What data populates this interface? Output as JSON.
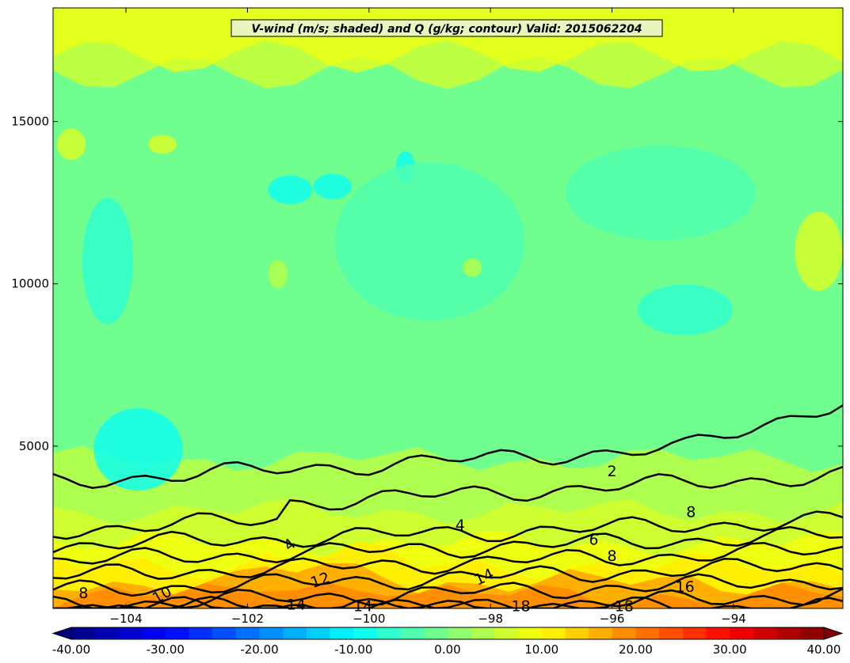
{
  "chart_data": {
    "type": "heatmap",
    "title": "V-wind (m/s; shaded) and Q (g/kg; contour) Valid: 2015062204",
    "xlabel": "",
    "ylabel": "",
    "xlim": [
      -105.2,
      -92.2
    ],
    "ylim": [
      0,
      18500
    ],
    "x_ticks": [
      -104,
      -102,
      -100,
      -98,
      -96,
      -94
    ],
    "x_tick_labels": [
      "−104",
      "−102",
      "−100",
      "−98",
      "−96",
      "−94"
    ],
    "y_ticks": [
      5000,
      10000,
      15000
    ],
    "y_tick_labels": [
      "5000",
      "10000",
      "15000"
    ],
    "shaded_field": "V-wind (m/s)",
    "contour_field": "Q (g/kg)",
    "contour_levels": [
      2,
      4,
      6,
      8,
      10,
      12,
      14,
      16,
      18
    ],
    "contour_labels": [
      {
        "text": "2",
        "x": -96.0,
        "y": 4200,
        "rotate": 0
      },
      {
        "text": "4",
        "x": -98.5,
        "y": 2550,
        "rotate": 0
      },
      {
        "text": "4",
        "x": -101.3,
        "y": 1950,
        "rotate": -40
      },
      {
        "text": "6",
        "x": -96.3,
        "y": 2100,
        "rotate": 10
      },
      {
        "text": "8",
        "x": -96.0,
        "y": 1600,
        "rotate": 0
      },
      {
        "text": "8",
        "x": -104.7,
        "y": 450,
        "rotate": 0
      },
      {
        "text": "8",
        "x": -94.7,
        "y": 2950,
        "rotate": 0
      },
      {
        "text": "10",
        "x": -103.4,
        "y": 400,
        "rotate": -30
      },
      {
        "text": "12",
        "x": -100.8,
        "y": 850,
        "rotate": -20
      },
      {
        "text": "14",
        "x": -98.1,
        "y": 950,
        "rotate": -25
      },
      {
        "text": "14",
        "x": -101.2,
        "y": 100,
        "rotate": 0
      },
      {
        "text": "14",
        "x": -100.1,
        "y": 50,
        "rotate": 0
      },
      {
        "text": "16",
        "x": -94.8,
        "y": 650,
        "rotate": 0
      },
      {
        "text": "18",
        "x": -97.5,
        "y": 50,
        "rotate": 0
      },
      {
        "text": "18",
        "x": -95.8,
        "y": 50,
        "rotate": 0
      }
    ],
    "colorbar": {
      "min": -40,
      "max": 40,
      "ticks": [
        "-40.00",
        "-30.00",
        "-20.00",
        "-10.00",
        "0.00",
        "10.00",
        "20.00",
        "30.00",
        "40.00"
      ],
      "extend": "both"
    },
    "grid": false,
    "legend": "none"
  }
}
